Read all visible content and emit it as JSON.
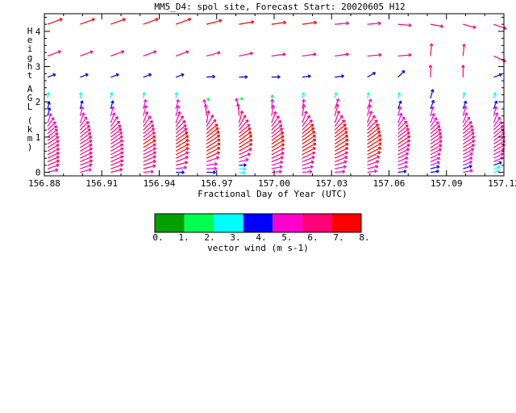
{
  "chart_data": {
    "type": "vector-field",
    "title": "MM5_D4: spol site,  Forecast Start: 20020605 H12",
    "xlabel": "Fractional Day of Year (UTC)",
    "ylabel": "Height AGL (km)",
    "xlim": [
      156.88,
      157.12
    ],
    "ylim": [
      -0.1,
      4.5
    ],
    "x_ticks": [
      "156.88",
      "156.91",
      "156.94",
      "156.97",
      "157.00",
      "157.03",
      "157.06",
      "157.09",
      "157.12"
    ],
    "y_ticks": [
      "0",
      "1",
      "2",
      "3",
      "4"
    ],
    "grid": false,
    "colorbar": {
      "label": "vector wind (m s-1)",
      "ticks": [
        "0.",
        "1.",
        "2.",
        "3.",
        "4.",
        "5.",
        "6.",
        "7.",
        "8."
      ],
      "colors": [
        "#00a000",
        "#00ff50",
        "#00ffff",
        "#0000ff",
        "#ff00cc",
        "#ff0077",
        "#ff0000"
      ]
    },
    "time_columns": [
      156.88,
      156.897,
      156.913,
      156.93,
      156.947,
      156.963,
      156.98,
      156.997,
      157.013,
      157.03,
      157.047,
      157.063,
      157.08,
      157.097,
      157.113
    ],
    "heights_km": [
      0.0,
      0.1,
      0.2,
      0.3,
      0.4,
      0.5,
      0.6,
      0.7,
      0.8,
      0.9,
      1.0,
      1.1,
      1.2,
      1.3,
      1.4,
      1.6,
      1.8,
      2.1,
      2.7,
      3.3,
      4.2
    ],
    "speed_ms": [
      [
        4.5,
        5.0,
        5.2,
        5.2,
        5.3,
        5.4,
        5.4,
        5.5,
        5.5,
        5.3,
        5.2,
        5.0,
        4.8,
        4.5,
        4.2,
        3.5,
        3.0,
        2.5,
        3.5,
        5.8,
        6.5
      ],
      [
        4.8,
        5.2,
        5.4,
        5.5,
        5.5,
        5.6,
        5.6,
        5.7,
        5.7,
        5.5,
        5.4,
        5.2,
        5.0,
        4.8,
        4.5,
        4.0,
        3.5,
        2.5,
        3.5,
        5.6,
        6.4
      ],
      [
        5.0,
        5.3,
        5.5,
        5.6,
        5.7,
        5.8,
        5.8,
        5.9,
        5.9,
        5.8,
        5.6,
        5.4,
        5.2,
        5.0,
        4.5,
        4.0,
        3.5,
        2.5,
        3.5,
        5.8,
        6.4
      ],
      [
        4.2,
        5.2,
        5.5,
        5.7,
        5.8,
        5.9,
        5.9,
        6.0,
        6.0,
        5.9,
        5.8,
        5.6,
        5.4,
        5.2,
        5.0,
        4.5,
        4.0,
        2.5,
        3.5,
        5.7,
        6.5
      ],
      [
        3.5,
        4.5,
        5.0,
        5.5,
        5.8,
        6.0,
        6.1,
        6.2,
        6.2,
        6.0,
        5.8,
        5.6,
        5.5,
        5.3,
        5.0,
        4.5,
        4.0,
        2.5,
        3.5,
        5.6,
        6.6
      ],
      [
        3.8,
        4.2,
        4.5,
        5.5,
        6.0,
        6.3,
        6.5,
        6.6,
        6.6,
        6.5,
        6.2,
        6.0,
        5.8,
        5.5,
        5.2,
        4.8,
        4.0,
        1.5,
        3.5,
        5.8,
        6.5
      ],
      [
        2.5,
        2.8,
        3.0,
        4.0,
        5.0,
        5.8,
        6.2,
        6.4,
        6.4,
        6.2,
        6.0,
        5.8,
        5.6,
        5.4,
        5.2,
        5.0,
        4.5,
        1.8,
        3.5,
        5.8,
        6.2
      ],
      [
        4.2,
        4.5,
        4.8,
        5.2,
        5.6,
        5.8,
        6.0,
        6.1,
        6.1,
        6.0,
        5.8,
        5.6,
        5.5,
        5.3,
        5.0,
        4.5,
        4.0,
        1.5,
        3.5,
        5.8,
        6.0
      ],
      [
        4.0,
        4.5,
        5.0,
        5.5,
        5.8,
        6.2,
        6.5,
        6.6,
        6.6,
        6.5,
        6.2,
        6.0,
        5.8,
        5.5,
        5.2,
        4.8,
        4.0,
        2.5,
        3.5,
        5.8,
        6.0
      ],
      [
        4.2,
        4.8,
        5.2,
        5.6,
        5.9,
        6.2,
        6.4,
        6.5,
        6.5,
        6.4,
        6.2,
        6.0,
        5.8,
        5.6,
        5.3,
        5.0,
        4.5,
        2.5,
        3.8,
        5.8,
        5.8
      ],
      [
        4.0,
        4.5,
        5.0,
        5.5,
        6.0,
        6.4,
        6.7,
        6.8,
        6.8,
        6.6,
        6.3,
        6.0,
        5.8,
        5.5,
        5.2,
        4.8,
        4.3,
        2.5,
        3.8,
        5.8,
        5.6
      ],
      [
        3.5,
        4.0,
        4.2,
        4.4,
        4.8,
        5.2,
        5.6,
        5.9,
        6.0,
        5.9,
        5.7,
        5.5,
        5.2,
        4.8,
        4.4,
        4.0,
        3.5,
        2.5,
        3.8,
        5.5,
        5.5
      ],
      [
        3.5,
        3.8,
        4.0,
        4.2,
        4.5,
        5.0,
        5.3,
        5.5,
        5.6,
        5.5,
        5.3,
        5.1,
        4.8,
        4.5,
        4.2,
        4.0,
        3.8,
        3.8,
        5.0,
        5.2,
        5.3
      ],
      [
        4.0,
        3.8,
        4.0,
        4.2,
        4.5,
        5.0,
        5.4,
        5.6,
        5.7,
        5.6,
        5.4,
        5.2,
        5.0,
        4.8,
        4.5,
        4.2,
        3.5,
        2.5,
        5.0,
        5.0,
        5.4
      ],
      [
        2.5,
        2.8,
        3.5,
        4.2,
        4.5,
        5.0,
        5.3,
        5.5,
        5.6,
        5.5,
        5.3,
        5.1,
        4.9,
        4.7,
        4.5,
        4.0,
        3.5,
        2.5,
        3.5,
        5.5,
        5.5
      ]
    ],
    "direction_deg": [
      [
        255,
        250,
        248,
        246,
        244,
        242,
        240,
        238,
        236,
        234,
        232,
        230,
        225,
        215,
        200,
        195,
        195,
        190,
        250,
        250,
        250
      ],
      [
        255,
        250,
        248,
        246,
        244,
        242,
        240,
        238,
        236,
        234,
        232,
        230,
        225,
        215,
        200,
        195,
        195,
        190,
        250,
        250,
        250
      ],
      [
        255,
        250,
        248,
        246,
        244,
        242,
        240,
        238,
        236,
        234,
        232,
        230,
        225,
        215,
        200,
        195,
        195,
        190,
        250,
        250,
        250
      ],
      [
        265,
        255,
        250,
        246,
        244,
        242,
        240,
        238,
        236,
        234,
        232,
        230,
        225,
        215,
        200,
        195,
        195,
        190,
        250,
        250,
        250
      ],
      [
        270,
        262,
        255,
        248,
        244,
        242,
        240,
        238,
        236,
        234,
        232,
        230,
        225,
        215,
        200,
        195,
        195,
        190,
        250,
        250,
        250
      ],
      [
        270,
        268,
        262,
        250,
        245,
        242,
        240,
        238,
        236,
        234,
        232,
        230,
        222,
        210,
        190,
        175,
        165,
        300,
        265,
        255,
        255
      ],
      [
        275,
        272,
        268,
        255,
        248,
        244,
        240,
        238,
        236,
        234,
        232,
        230,
        222,
        210,
        195,
        175,
        165,
        280,
        268,
        258,
        260
      ],
      [
        265,
        258,
        252,
        248,
        245,
        242,
        240,
        238,
        236,
        234,
        232,
        230,
        225,
        215,
        200,
        190,
        185,
        200,
        268,
        262,
        262
      ],
      [
        265,
        258,
        252,
        248,
        245,
        242,
        240,
        238,
        236,
        234,
        232,
        230,
        225,
        215,
        200,
        190,
        190,
        195,
        262,
        262,
        262
      ],
      [
        265,
        258,
        252,
        248,
        245,
        242,
        240,
        238,
        236,
        234,
        232,
        230,
        225,
        215,
        200,
        195,
        200,
        195,
        262,
        262,
        265
      ],
      [
        262,
        255,
        250,
        246,
        244,
        242,
        240,
        238,
        236,
        234,
        232,
        230,
        225,
        215,
        200,
        195,
        200,
        195,
        240,
        265,
        265
      ],
      [
        262,
        255,
        250,
        246,
        244,
        242,
        240,
        238,
        236,
        234,
        232,
        230,
        225,
        215,
        200,
        195,
        200,
        195,
        225,
        265,
        275
      ],
      [
        262,
        255,
        250,
        246,
        244,
        242,
        240,
        238,
        236,
        234,
        232,
        230,
        225,
        215,
        200,
        195,
        200,
        195,
        180,
        185,
        280
      ],
      [
        258,
        252,
        248,
        245,
        243,
        241,
        240,
        238,
        236,
        234,
        232,
        230,
        225,
        215,
        200,
        195,
        200,
        195,
        180,
        185,
        285
      ],
      [
        255,
        250,
        248,
        245,
        243,
        241,
        240,
        238,
        236,
        234,
        232,
        230,
        225,
        215,
        200,
        195,
        200,
        195,
        250,
        295,
        290
      ]
    ]
  }
}
